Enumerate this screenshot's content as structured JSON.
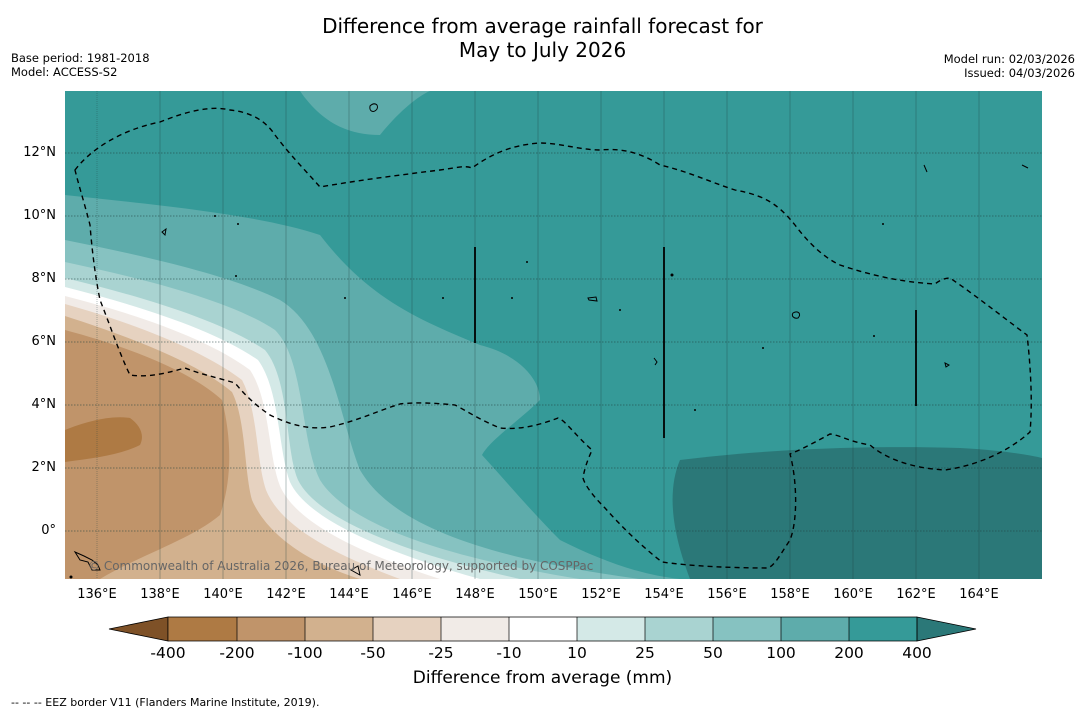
{
  "title_line1": "Difference from average rainfall forecast for",
  "title_line2": "May to July 2026",
  "base_period": "Base period: 1981-2018",
  "model": "Model: ACCESS-S2",
  "model_run": "Model run: 02/03/2026",
  "issued": "Issued: 04/03/2026",
  "credit": "© Commonwealth of Australia 2026, Bureau of Meteorology, supported by COSPPac",
  "footer": "--  --  -- EEZ border V11 (Flanders Marine Institute, 2019).",
  "colorbar": {
    "title": "Difference from average (mm)",
    "labels": [
      "-400",
      "-200",
      "-100",
      "-50",
      "-25",
      "-10",
      "10",
      "25",
      "50",
      "100",
      "200",
      "400"
    ],
    "colors": [
      "#7e5127",
      "#ae7a44",
      "#c0946a",
      "#d2b18e",
      "#e6d2c0",
      "#f1ebe7",
      "#ffffff",
      "#d4e9e7",
      "#a9d3d1",
      "#86c2c1",
      "#5eacab",
      "#359a98",
      "#2b7878"
    ]
  },
  "axes": {
    "x_ticks": [
      "136°E",
      "138°E",
      "140°E",
      "142°E",
      "144°E",
      "146°E",
      "148°E",
      "150°E",
      "152°E",
      "154°E",
      "156°E",
      "158°E",
      "160°E",
      "162°E",
      "164°E"
    ],
    "y_ticks": [
      "12°N",
      "10°N",
      "8°N",
      "6°N",
      "4°N",
      "2°N",
      "0°"
    ],
    "x_range_deg": [
      135.0,
      166.0
    ],
    "y_range_deg": [
      -1.5,
      13.9
    ]
  }
}
